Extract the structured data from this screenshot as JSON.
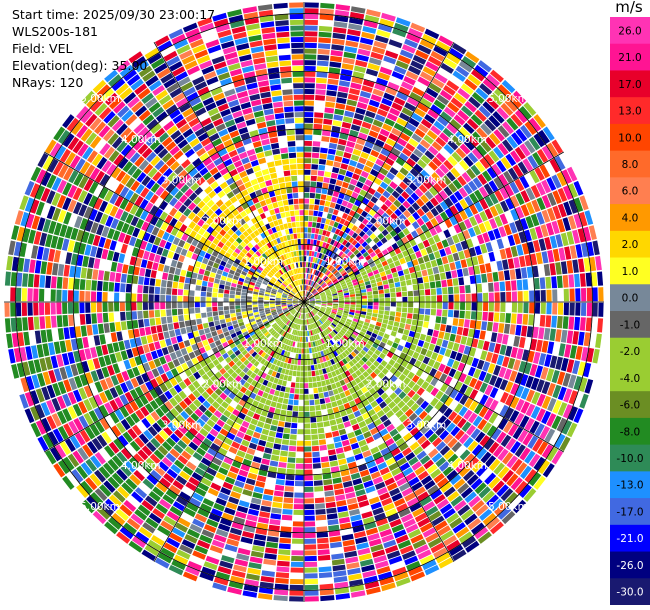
{
  "header": {
    "start_time": "Start time: 2025/09/30 23:00:17",
    "instrument": "WLS200s-181",
    "field": "Field: VEL",
    "elevation": "Elevation(deg): 35.00",
    "nrays": "NRays: 120"
  },
  "chart_data": {
    "type": "heatmap",
    "projection": "polar PPI",
    "field": "VEL",
    "units": "m/s",
    "elevation_deg": 35.0,
    "n_rays": 120,
    "range_rings_km": [
      1,
      2,
      3,
      4,
      5
    ],
    "ring_labels": [
      "1.00km",
      "2.00km",
      "3.00km",
      "4.00km",
      "5.00km"
    ],
    "max_range_km": 5.2,
    "colorbar": {
      "title": "m/s",
      "ticks": [
        "26.0",
        "21.0",
        "17.0",
        "13.0",
        "10.0",
        "8.0",
        "6.0",
        "4.0",
        "2.0",
        "1.0",
        "0.0",
        "-1.0",
        "-2.0",
        "-4.0",
        "-6.0",
        "-8.0",
        "-10.0",
        "-13.0",
        "-17.0",
        "-21.0",
        "-26.0",
        "-30.0"
      ],
      "bands": [
        {
          "min": 26,
          "max": 30,
          "color": "#ff33b4"
        },
        {
          "min": 21,
          "max": 26,
          "color": "#ff1493"
        },
        {
          "min": 17,
          "max": 21,
          "color": "#e8002a"
        },
        {
          "min": 13,
          "max": 17,
          "color": "#ff2a2a"
        },
        {
          "min": 10,
          "max": 13,
          "color": "#ff4500"
        },
        {
          "min": 8,
          "max": 10,
          "color": "#ff6a2a"
        },
        {
          "min": 6,
          "max": 8,
          "color": "#ff7f50"
        },
        {
          "min": 4,
          "max": 6,
          "color": "#ff9900"
        },
        {
          "min": 2,
          "max": 4,
          "color": "#ffd700"
        },
        {
          "min": 1,
          "max": 2,
          "color": "#ffff22"
        },
        {
          "min": 0,
          "max": 1,
          "color": "#778899"
        },
        {
          "min": -1,
          "max": 0,
          "color": "#666666"
        },
        {
          "min": -2,
          "max": -1,
          "color": "#9acd32"
        },
        {
          "min": -4,
          "max": -2,
          "color": "#9acd32"
        },
        {
          "min": -6,
          "max": -4,
          "color": "#6b8e23"
        },
        {
          "min": -8,
          "max": -6,
          "color": "#228b22"
        },
        {
          "min": -10,
          "max": -8,
          "color": "#2e8b57"
        },
        {
          "min": -13,
          "max": -10,
          "color": "#1e90ff"
        },
        {
          "min": -17,
          "max": -13,
          "color": "#4169e1"
        },
        {
          "min": -21,
          "max": -17,
          "color": "#0000ff"
        },
        {
          "min": -26,
          "max": -21,
          "color": "#000080"
        },
        {
          "min": -30,
          "max": -26,
          "color": "#191970"
        }
      ]
    },
    "sector_pattern": [
      {
        "az_from": 300,
        "az_to": 360,
        "range_km": [
          0,
          2.6
        ],
        "dominant_velocity": 2.5
      },
      {
        "az_from": 60,
        "az_to": 120,
        "range_km": [
          0,
          3.5
        ],
        "dominant_velocity": -3.0
      },
      {
        "az_from": 120,
        "az_to": 240,
        "range_km": [
          0,
          3.0
        ],
        "dominant_velocity": -2.5
      },
      {
        "az_from": 200,
        "az_to": 300,
        "range_km": [
          3.0,
          5.2
        ],
        "dominant_velocity": -7.0
      },
      {
        "az_from": 240,
        "az_to": 300,
        "range_km": [
          0,
          2.5
        ],
        "dominant_velocity": 0.5
      }
    ]
  }
}
